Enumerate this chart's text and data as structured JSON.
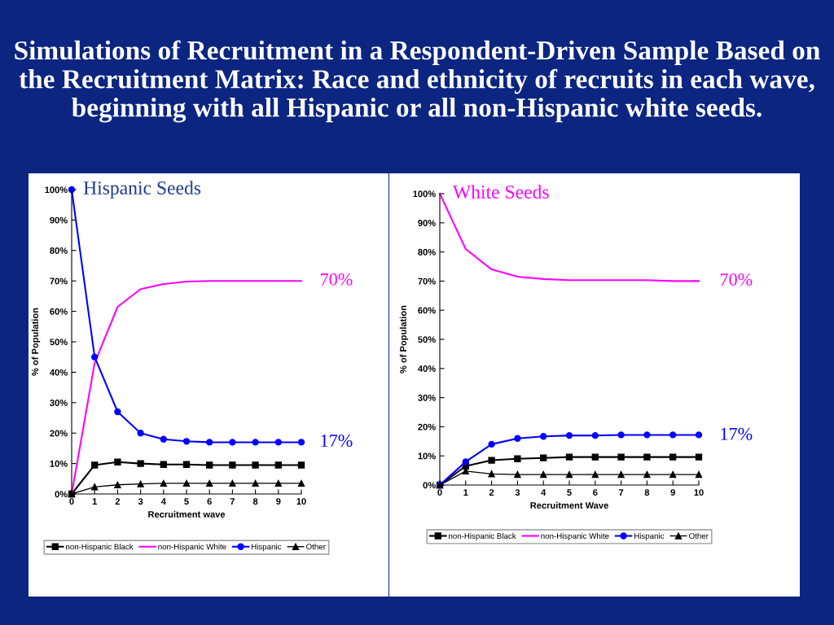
{
  "chart_data": [
    {
      "type": "line",
      "title": "Simulations of Recruitment in a Respondent-Driven Sample Based on the Recruitment Matrix: Race and ethnicity of recruits in each wave, beginning with all Hispanic or all non-Hispanic white seeds.",
      "subtitle": "Hispanic Seeds",
      "xlabel": "Recruitment wave",
      "ylabel": "% of Population",
      "x": [
        0,
        1,
        2,
        3,
        4,
        5,
        6,
        7,
        8,
        9,
        10
      ],
      "series": [
        {
          "name": "non-Hispanic Black",
          "color": "#000000",
          "marker": "square",
          "values": [
            0,
            9.5,
            10.5,
            10,
            9.7,
            9.7,
            9.5,
            9.5,
            9.5,
            9.5,
            9.5
          ]
        },
        {
          "name": "non-Hispanic White",
          "color": "#ff00ff",
          "marker": "none",
          "values": [
            0,
            43,
            61.5,
            67.3,
            69,
            69.8,
            70,
            70,
            70,
            70,
            70
          ]
        },
        {
          "name": "Hispanic",
          "color": "#0000ff",
          "marker": "circle",
          "values": [
            100,
            45,
            27,
            20,
            18,
            17.3,
            17,
            17,
            17,
            17,
            17
          ]
        },
        {
          "name": "Other",
          "color": "#000000",
          "marker": "triangle",
          "values": [
            0,
            2.3,
            3,
            3.3,
            3.5,
            3.5,
            3.5,
            3.5,
            3.5,
            3.5,
            3.5
          ]
        }
      ],
      "xlim": [
        0,
        10
      ],
      "xticks": [
        0,
        1,
        2,
        3,
        4,
        5,
        6,
        7,
        8,
        9,
        10
      ],
      "ylim": [
        0,
        100
      ],
      "yticks": [
        {
          "value": 0,
          "label": "0%"
        },
        {
          "value": 10,
          "label": "10%"
        },
        {
          "value": 20,
          "label": "20%"
        },
        {
          "value": 30,
          "label": "30%"
        },
        {
          "value": 40,
          "label": "40%"
        },
        {
          "value": 50,
          "label": "50%"
        },
        {
          "value": 60,
          "label": "60%"
        },
        {
          "value": 70,
          "label": "70%"
        },
        {
          "value": 80,
          "label": "80%"
        },
        {
          "value": 90,
          "label": "90%"
        },
        {
          "value": 100,
          "label": "100%"
        }
      ],
      "annotations": [
        "70%",
        "17%"
      ],
      "grid": false,
      "legend": "bottom"
    },
    {
      "type": "line",
      "subtitle": "White Seeds",
      "xlabel": "Recruitment Wave",
      "ylabel": "% of Population",
      "x": [
        0,
        1,
        2,
        3,
        4,
        5,
        6,
        7,
        8,
        9,
        10
      ],
      "series": [
        {
          "name": "non-Hispanic Black",
          "color": "#000000",
          "marker": "square",
          "values": [
            0,
            6.5,
            8.5,
            9,
            9.3,
            9.6,
            9.6,
            9.6,
            9.6,
            9.6,
            9.6
          ]
        },
        {
          "name": "non-Hispanic White",
          "color": "#ff00ff",
          "marker": "none",
          "values": [
            100,
            81,
            74,
            71.5,
            70.7,
            70.3,
            70.3,
            70.3,
            70.3,
            70,
            70
          ]
        },
        {
          "name": "Hispanic",
          "color": "#0000ff",
          "marker": "circle",
          "values": [
            0,
            8,
            14,
            16,
            16.7,
            17,
            17,
            17.2,
            17.2,
            17.2,
            17.2
          ]
        },
        {
          "name": "Other",
          "color": "#000000",
          "marker": "triangle",
          "values": [
            0,
            4.8,
            3.8,
            3.6,
            3.6,
            3.6,
            3.6,
            3.6,
            3.6,
            3.6,
            3.6
          ]
        }
      ],
      "xlim": [
        0,
        10
      ],
      "xticks": [
        0,
        1,
        2,
        3,
        4,
        5,
        6,
        7,
        8,
        9,
        10
      ],
      "ylim": [
        0,
        100
      ],
      "yticks": [
        {
          "value": 0,
          "label": "0%"
        },
        {
          "value": 10,
          "label": "10%"
        },
        {
          "value": 20,
          "label": "20%"
        },
        {
          "value": 30,
          "label": "30%"
        },
        {
          "value": 40,
          "label": "40%"
        },
        {
          "value": 50,
          "label": "50%"
        },
        {
          "value": 60,
          "label": "60%"
        },
        {
          "value": 70,
          "label": "70%"
        },
        {
          "value": 80,
          "label": "80%"
        },
        {
          "value": 90,
          "label": "90%"
        },
        {
          "value": 100,
          "label": "100%"
        }
      ],
      "annotations": [
        "70%",
        "17%"
      ],
      "grid": false,
      "legend": "bottom"
    }
  ]
}
